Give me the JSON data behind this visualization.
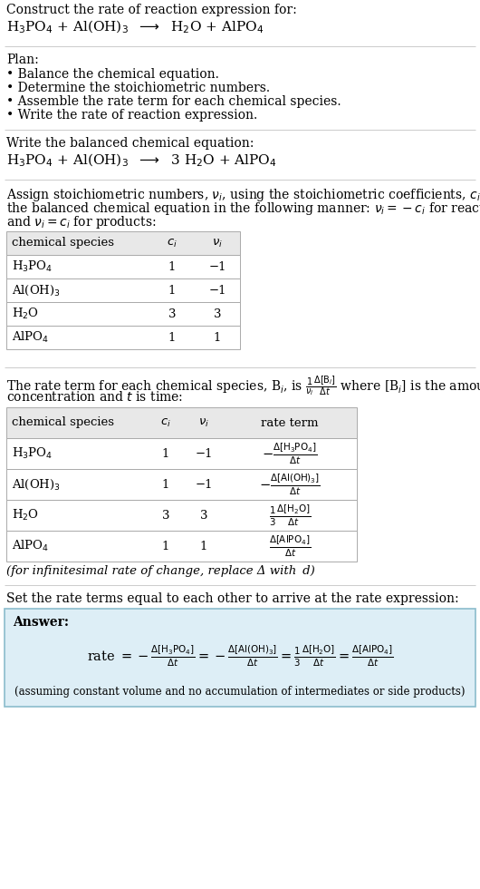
{
  "bg_color": "#ffffff",
  "text_color": "#000000",
  "title_line1": "Construct the rate of reaction expression for:",
  "plan_header": "Plan:",
  "plan_items": [
    "• Balance the chemical equation.",
    "• Determine the stoichiometric numbers.",
    "• Assemble the rate term for each chemical species.",
    "• Write the rate of reaction expression."
  ],
  "balanced_header": "Write the balanced chemical equation:",
  "stoich_intro_lines": [
    "Assign stoichiometric numbers, $\\nu_i$, using the stoichiometric coefficients, $c_i$, from",
    "the balanced chemical equation in the following manner: $\\nu_i = -c_i$ for reactants",
    "and $\\nu_i = c_i$ for products:"
  ],
  "table1_headers": [
    "chemical species",
    "$c_i$",
    "$\\nu_i$"
  ],
  "table1_rows": [
    [
      "H$_3$PO$_4$",
      "1",
      "−1"
    ],
    [
      "Al(OH)$_3$",
      "1",
      "−1"
    ],
    [
      "H$_2$O",
      "3",
      "3"
    ],
    [
      "AlPO$_4$",
      "1",
      "1"
    ]
  ],
  "rate_intro_lines": [
    "The rate term for each chemical species, B$_i$, is $\\frac{1}{\\nu_i}\\frac{\\Delta[\\mathrm{B}_i]}{\\Delta t}$ where [B$_i$] is the amount",
    "concentration and $t$ is time:"
  ],
  "table2_headers": [
    "chemical species",
    "$c_i$",
    "$\\nu_i$",
    "rate term"
  ],
  "table2_col_species": [
    "H$_3$PO$_4$",
    "Al(OH)$_3$",
    "H$_2$O",
    "AlPO$_4$"
  ],
  "table2_col_ci": [
    "1",
    "1",
    "3",
    "1"
  ],
  "table2_col_ni": [
    "−1",
    "−1",
    "3",
    "1"
  ],
  "infinitesimal_note": "(for infinitesimal rate of change, replace Δ with  d)",
  "set_rate_text": "Set the rate terms equal to each other to arrive at the rate expression:",
  "answer_box_bg": "#ddeef6",
  "answer_border_color": "#8bbccc",
  "assuming_note": "(assuming constant volume and no accumulation of intermediates or side products)",
  "font_size": 10,
  "table_header_bg": "#e8e8e8",
  "table_line_color": "#aaaaaa",
  "sep_line_color": "#cccccc"
}
